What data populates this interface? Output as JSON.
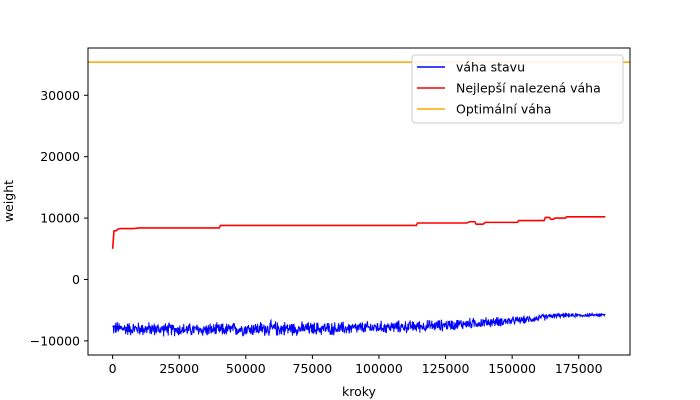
{
  "chart_data": {
    "type": "line",
    "title": "",
    "xlabel": "kroky",
    "ylabel": "weight",
    "xlim": [
      -9250,
      194250
    ],
    "ylim": [
      -12300,
      37700
    ],
    "x_ticks": [
      0,
      25000,
      50000,
      75000,
      100000,
      125000,
      150000,
      175000
    ],
    "y_ticks": [
      -10000,
      0,
      10000,
      20000,
      30000
    ],
    "grid": false,
    "legend_position": "top-right",
    "series": [
      {
        "name": "váha stavu",
        "color": "#0000ff",
        "style": "noisy",
        "x": [
          0,
          10000,
          20000,
          30000,
          40000,
          50000,
          60000,
          70000,
          80000,
          90000,
          100000,
          110000,
          120000,
          130000,
          140000,
          150000,
          155000,
          160000,
          165000,
          170000,
          175000,
          180000,
          185000
        ],
        "lower": [
          -9300,
          -9400,
          -9400,
          -9500,
          -9500,
          -9400,
          -9500,
          -9300,
          -9300,
          -9200,
          -9000,
          -8900,
          -8700,
          -8400,
          -8000,
          -7600,
          -7300,
          -7000,
          -6500,
          -6300,
          -6200,
          -6100,
          -6000
        ],
        "upper": [
          -6600,
          -6700,
          -6800,
          -6900,
          -6900,
          -6700,
          -6500,
          -6700,
          -6700,
          -6700,
          -6600,
          -6500,
          -6400,
          -6200,
          -6000,
          -5900,
          -5800,
          -5600,
          -5400,
          -5400,
          -5500,
          -5500,
          -5500
        ]
      },
      {
        "name": "Nejlepší nalezená váha",
        "color": "#ff0000",
        "style": "step",
        "x": [
          0,
          500,
          800,
          1500,
          2000,
          3000,
          8000,
          10000,
          40000,
          40500,
          114000,
          114500,
          133000,
          134000,
          136000,
          136500,
          139000,
          140000,
          152000,
          152500,
          162000,
          162500,
          164000,
          164500,
          165500,
          166000,
          170000,
          170500,
          185000
        ],
        "y": [
          5000,
          7900,
          7900,
          8000,
          8200,
          8300,
          8300,
          8400,
          8400,
          8800,
          8800,
          9200,
          9200,
          9400,
          9400,
          9000,
          9000,
          9300,
          9300,
          9600,
          9600,
          10100,
          10100,
          9800,
          9800,
          10000,
          10000,
          10200,
          10200
        ]
      },
      {
        "name": "Optimální váha",
        "color": "#ffa500",
        "style": "hline",
        "y": 35400
      }
    ]
  }
}
